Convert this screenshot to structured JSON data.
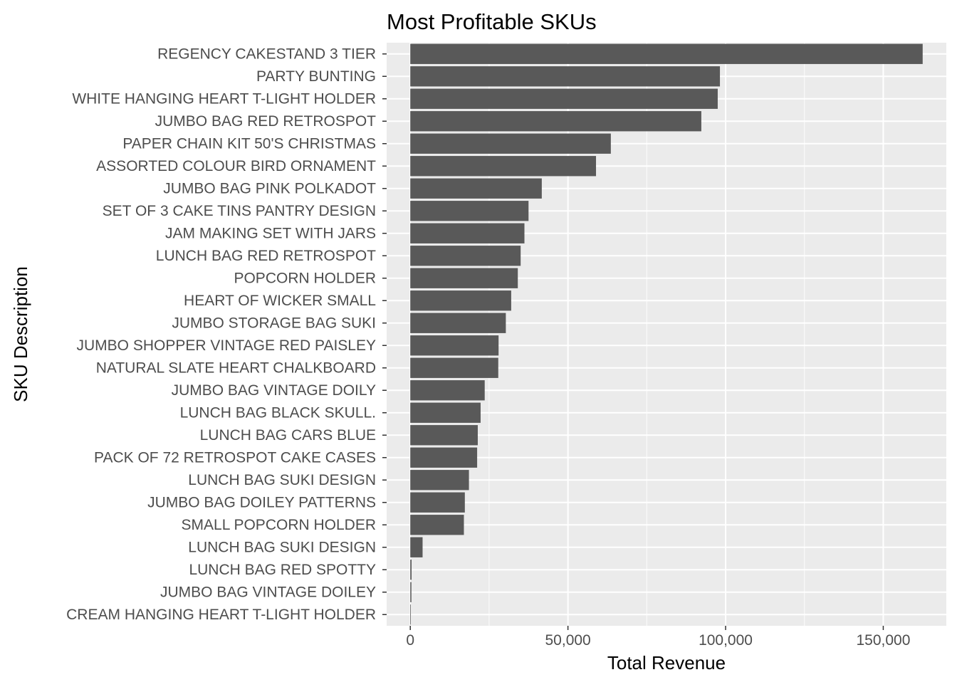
{
  "chart_data": {
    "type": "bar",
    "orientation": "horizontal",
    "title": "Most Profitable SKUs",
    "xlabel": "Total Revenue",
    "ylabel": "SKU Description",
    "xlim": [
      -7500,
      170000
    ],
    "x_ticks": [
      0,
      50000,
      100000,
      150000
    ],
    "x_tick_labels": [
      "0",
      "50,000",
      "100,000",
      "150,000"
    ],
    "grid": true,
    "legend": "none",
    "bar_color": "#595959",
    "panel_color": "#ebebeb",
    "categories": [
      "REGENCY CAKESTAND 3 TIER",
      "PARTY BUNTING",
      "WHITE HANGING HEART T-LIGHT HOLDER",
      "JUMBO BAG RED RETROSPOT",
      "PAPER CHAIN KIT 50'S CHRISTMAS ",
      "ASSORTED COLOUR BIRD ORNAMENT",
      "JUMBO BAG PINK POLKADOT",
      "SET OF 3 CAKE TINS PANTRY DESIGN ",
      "JAM MAKING SET WITH JARS",
      "LUNCH BAG RED RETROSPOT",
      "POPCORN HOLDER",
      "HEART OF WICKER SMALL",
      "JUMBO STORAGE BAG SUKI",
      "JUMBO SHOPPER VINTAGE RED PAISLEY",
      "NATURAL SLATE HEART CHALKBOARD ",
      "JUMBO BAG VINTAGE DOILY ",
      "LUNCH BAG  BLACK SKULL.",
      "LUNCH BAG CARS BLUE",
      "PACK OF 72 RETROSPOT CAKE CASES",
      "LUNCH BAG SUKI DESIGN ",
      "JUMBO BAG DOILEY PATTERNS",
      "SMALL POPCORN HOLDER",
      "LUNCH BAG SUKI  DESIGN ",
      "LUNCH BAG RED SPOTTY",
      "JUMBO BAG VINTAGE DOILEY ",
      "CREAM HANGING HEART T-LIGHT HOLDER"
    ],
    "values": [
      162500,
      98200,
      97500,
      92300,
      63600,
      58900,
      41700,
      37500,
      36200,
      35000,
      34100,
      32000,
      30300,
      28000,
      27900,
      23600,
      22300,
      21400,
      21200,
      18600,
      17300,
      17000,
      3900,
      400,
      350,
      150
    ]
  }
}
